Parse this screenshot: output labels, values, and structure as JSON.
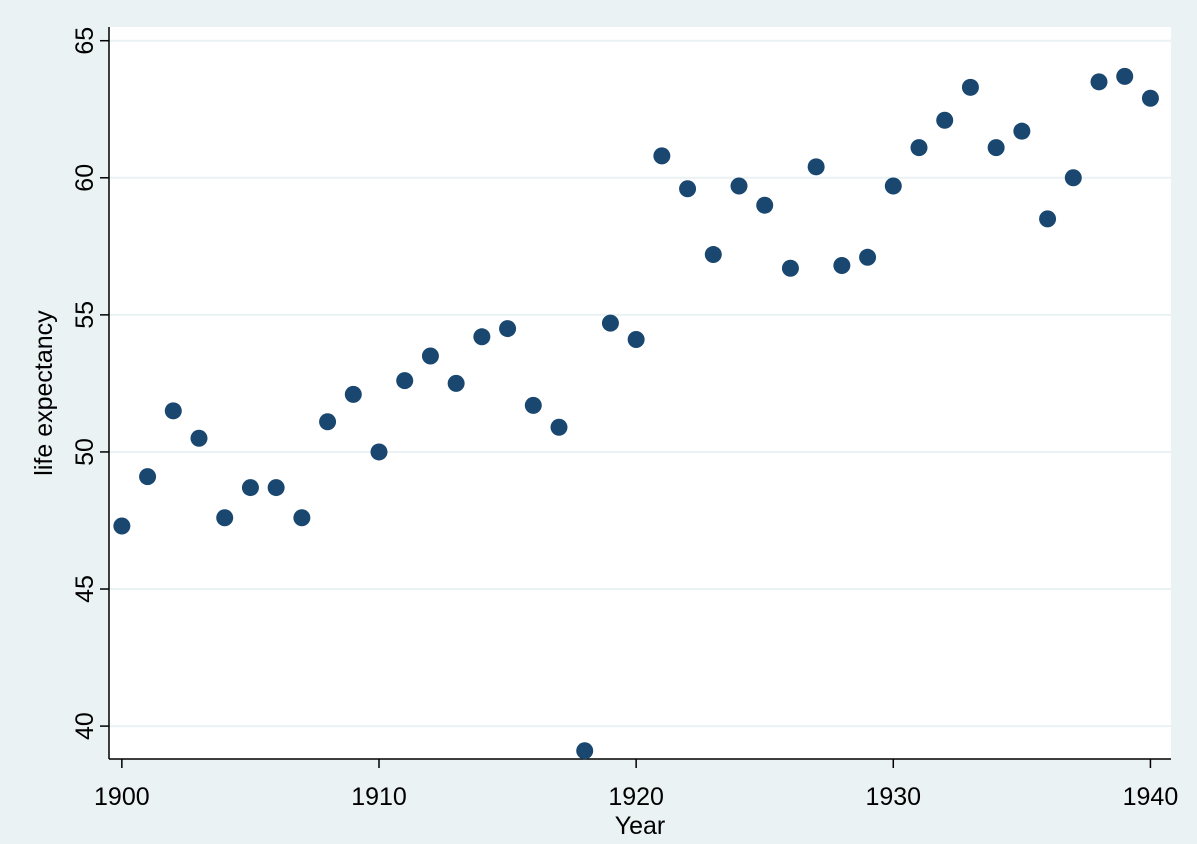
{
  "chart_data": {
    "type": "scatter",
    "title": "",
    "xlabel": "Year",
    "ylabel": "life expectancy",
    "xlim": [
      1899.5,
      1940.8
    ],
    "ylim": [
      38.8,
      65.5
    ],
    "xticks": [
      "1900",
      "1910",
      "1920",
      "1930",
      "1940"
    ],
    "yticks": [
      "40",
      "45",
      "50",
      "55",
      "60",
      "65"
    ],
    "grid": "horizontal",
    "legend": "none",
    "colors": {
      "marker": "#1a476f",
      "grid": "#eaf2f3",
      "plot_bg": "#ffffff",
      "outer_bg": "#eaf2f3"
    },
    "series": [
      {
        "x": [
          1900,
          1901,
          1902,
          1903,
          1904,
          1905,
          1906,
          1907,
          1908,
          1909,
          1910,
          1911,
          1912,
          1913,
          1914,
          1915,
          1916,
          1917,
          1918,
          1919,
          1920,
          1921,
          1922,
          1923,
          1924,
          1925,
          1926,
          1927,
          1928,
          1929,
          1930,
          1931,
          1932,
          1933,
          1934,
          1935,
          1936,
          1937,
          1938,
          1939,
          1940
        ],
        "values": [
          47.3,
          49.1,
          51.5,
          50.5,
          47.6,
          48.7,
          48.7,
          47.6,
          51.1,
          52.1,
          50.0,
          52.6,
          53.5,
          52.5,
          54.2,
          54.5,
          51.7,
          50.9,
          39.1,
          54.7,
          54.1,
          60.8,
          59.6,
          57.2,
          59.7,
          59.0,
          56.7,
          60.4,
          56.8,
          57.1,
          59.7,
          61.1,
          62.1,
          63.3,
          61.1,
          61.7,
          58.5,
          60.0,
          63.5,
          63.7,
          62.9
        ]
      }
    ]
  }
}
